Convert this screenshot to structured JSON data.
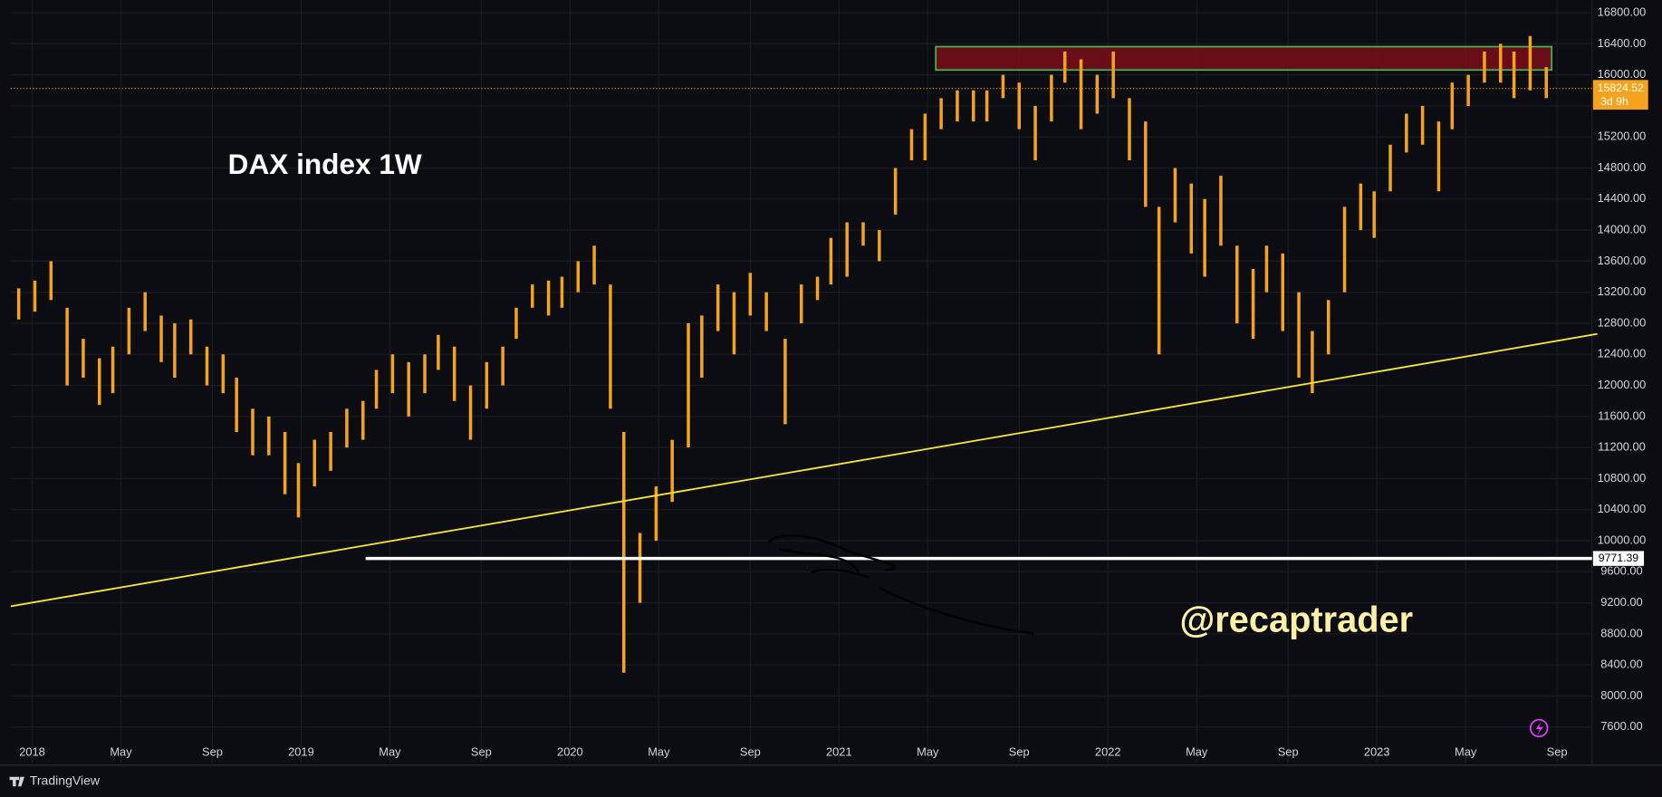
{
  "chart_data": {
    "type": "ohlc",
    "title": "DAX index 1W",
    "watermark": "@recaptrader",
    "color": "#f5a21c",
    "x": [
      2017.95,
      2018.01,
      2018.07,
      2018.13,
      2018.19,
      2018.25,
      2018.3,
      2018.36,
      2018.42,
      2018.48,
      2018.53,
      2018.59,
      2018.65,
      2018.71,
      2018.76,
      2018.82,
      2018.88,
      2018.94,
      2018.99,
      2019.05,
      2019.11,
      2019.17,
      2019.23,
      2019.28,
      2019.34,
      2019.4,
      2019.46,
      2019.51,
      2019.57,
      2019.63,
      2019.69,
      2019.75,
      2019.8,
      2019.86,
      2019.92,
      2019.97,
      2020.03,
      2020.09,
      2020.15,
      2020.2,
      2020.26,
      2020.32,
      2020.38,
      2020.44,
      2020.49,
      2020.55,
      2020.61,
      2020.67,
      2020.73,
      2020.8,
      2020.86,
      2020.92,
      2020.97,
      2021.03,
      2021.09,
      2021.15,
      2021.21,
      2021.27,
      2021.32,
      2021.38,
      2021.44,
      2021.5,
      2021.55,
      2021.61,
      2021.67,
      2021.73,
      2021.79,
      2021.84,
      2021.9,
      2021.96,
      2022.02,
      2022.08,
      2022.14,
      2022.19,
      2022.25,
      2022.31,
      2022.36,
      2022.42,
      2022.48,
      2022.54,
      2022.59,
      2022.65,
      2022.71,
      2022.76,
      2022.82,
      2022.88,
      2022.94,
      2022.99,
      2023.05,
      2023.11,
      2023.17,
      2023.23,
      2023.28,
      2023.34,
      2023.4,
      2023.46,
      2023.51,
      2023.57,
      2023.63
    ],
    "high": [
      13250,
      13350,
      13600,
      13000,
      12600,
      12350,
      12500,
      13000,
      13200,
      12900,
      12800,
      12850,
      12500,
      12400,
      12100,
      11700,
      11600,
      11400,
      11000,
      11300,
      11400,
      11700,
      11800,
      12200,
      12400,
      12300,
      12400,
      12650,
      12500,
      12000,
      12300,
      12500,
      13000,
      13300,
      13350,
      13400,
      13600,
      13800,
      13300,
      11400,
      10100,
      10700,
      11300,
      12800,
      12900,
      13300,
      13200,
      13450,
      13200,
      12600,
      13300,
      13400,
      13900,
      14100,
      14100,
      14000,
      14800,
      15300,
      15500,
      15700,
      15800,
      15800,
      15800,
      16000,
      15900,
      15600,
      16000,
      16300,
      16200,
      16000,
      16300,
      15700,
      15400,
      14300,
      14800,
      14600,
      14400,
      14700,
      13800,
      13500,
      13800,
      13700,
      13200,
      12700,
      13100,
      14300,
      14600,
      14500,
      15100,
      15500,
      15600,
      15400,
      15900,
      16000,
      16300,
      16400,
      16300,
      16500,
      16100
    ],
    "low": [
      12850,
      12950,
      13100,
      12000,
      12100,
      11750,
      11900,
      12400,
      12700,
      12300,
      12100,
      12400,
      12000,
      11900,
      11400,
      11100,
      11100,
      10600,
      10300,
      10700,
      10900,
      11200,
      11300,
      11700,
      11900,
      11600,
      11900,
      12200,
      11800,
      11300,
      11700,
      12000,
      12600,
      13000,
      12900,
      13000,
      13200,
      13300,
      11700,
      8300,
      9200,
      10000,
      10500,
      11200,
      12100,
      12700,
      12400,
      12900,
      12700,
      11500,
      12800,
      13100,
      13300,
      13400,
      13800,
      13600,
      14200,
      14900,
      14900,
      15300,
      15400,
      15400,
      15400,
      15700,
      15300,
      14900,
      15400,
      15900,
      15300,
      15500,
      15700,
      14900,
      14300,
      12400,
      14100,
      13700,
      13400,
      13800,
      12800,
      12600,
      13200,
      12700,
      12100,
      11900,
      12400,
      13200,
      14000,
      13900,
      14500,
      15000,
      15100,
      14500,
      15300,
      15600,
      15900,
      15900,
      15700,
      15800,
      15700
    ],
    "xlim": [
      2017.92,
      2023.8
    ],
    "ylim": [
      7136,
      16964
    ],
    "grid": true,
    "xticks": [
      2018,
      {
        "value": 2018.33,
        "label": "May"
      },
      {
        "value": 2018.67,
        "label": "Sep"
      },
      2019,
      {
        "value": 2019.33,
        "label": "May"
      },
      {
        "value": 2019.67,
        "label": "Sep"
      },
      2020,
      {
        "value": 2020.33,
        "label": "May"
      },
      {
        "value": 2020.67,
        "label": "Sep"
      },
      2021,
      {
        "value": 2021.33,
        "label": "May"
      },
      {
        "value": 2021.67,
        "label": "Sep"
      },
      2022,
      {
        "value": 2022.33,
        "label": "May"
      },
      {
        "value": 2022.67,
        "label": "Sep"
      },
      2023,
      {
        "value": 2023.33,
        "label": "May"
      },
      {
        "value": 2023.67,
        "label": "Sep"
      }
    ],
    "yticks": [
      {
        "value": 7600,
        "label": "7600.00"
      },
      {
        "value": 8000,
        "label": "8000.00"
      },
      {
        "value": 8400,
        "label": "8400.00"
      },
      {
        "value": 8800,
        "label": "8800.00"
      },
      {
        "value": 9200,
        "label": "9200.00"
      },
      {
        "value": 9600,
        "label": "9600.00"
      },
      {
        "value": 10000,
        "label": "10000.00"
      },
      {
        "value": 10400,
        "label": "10400.00"
      },
      {
        "value": 10800,
        "label": "10800.00"
      },
      {
        "value": 11200,
        "label": "11200.00"
      },
      {
        "value": 11600,
        "label": "11600.00"
      },
      {
        "value": 12000,
        "label": "12000.00"
      },
      {
        "value": 12400,
        "label": "12400.00"
      },
      {
        "value": 12800,
        "label": "12800.00"
      },
      {
        "value": 13200,
        "label": "13200.00"
      },
      {
        "value": 13600,
        "label": "13600.00"
      },
      {
        "value": 14000,
        "label": "14000.00"
      },
      {
        "value": 14400,
        "label": "14400.00"
      },
      {
        "value": 14800,
        "label": "14800.00"
      },
      {
        "value": 15200,
        "label": "15200.00"
      },
      {
        "value": 15600,
        "label": "15600.00"
      },
      {
        "value": 16000,
        "label": "16000.00"
      },
      {
        "value": 16400,
        "label": "16400.00"
      },
      {
        "value": 16800,
        "label": "16800.00"
      }
    ],
    "last_price": 15824.52,
    "countdown": "3d 9h",
    "support": {
      "value": 9771.39,
      "x0": 2019.24
    },
    "trendline": {
      "x": [
        2017.92,
        2023.82
      ],
      "y": [
        9155,
        12663
      ]
    },
    "zone": {
      "x": [
        2021.36,
        2023.65
      ],
      "y": [
        16063,
        16363
      ]
    }
  },
  "brand": "TradingView"
}
